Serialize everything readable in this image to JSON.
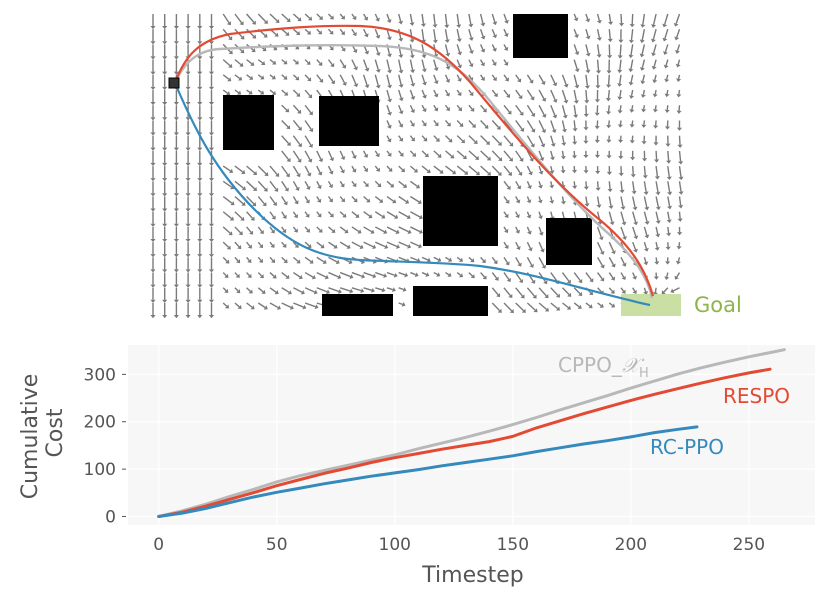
{
  "colors": {
    "respo": "#e24a33",
    "rc_ppo": "#348abd",
    "cppo": "#b8b8b8",
    "goal_fill": "#c9dfa3",
    "goal_text": "#8cb54a",
    "arrow": "#7a7a7a",
    "obstacle": "#000000",
    "plot_bg": "#f7f7f7",
    "grid": "#ffffff",
    "tick_text": "#555555"
  },
  "trajectory_panel": {
    "goal_label": "Goal",
    "icons": [
      "start-marker-icon",
      "vector-field-arrow-icon"
    ],
    "paths": [
      {
        "name": "RESPO",
        "color_key": "respo"
      },
      {
        "name": "CPPO_X_H",
        "color_key": "cppo"
      },
      {
        "name": "RC-PPO",
        "color_key": "rc_ppo"
      }
    ]
  },
  "chart_data": {
    "type": "line",
    "xlabel": "Timestep",
    "ylabel": "Cumulative\nCost",
    "ylabel_lines": [
      "Cumulative",
      "Cost"
    ],
    "xlim": [
      -13,
      278
    ],
    "ylim": [
      -18,
      362
    ],
    "xticks": [
      0,
      50,
      100,
      150,
      200,
      250
    ],
    "yticks": [
      0,
      100,
      200,
      300
    ],
    "xtick_labels": [
      "0",
      "50",
      "100",
      "150",
      "200",
      "250"
    ],
    "ytick_labels": [
      "0",
      "100",
      "200",
      "300"
    ],
    "grid": true,
    "series": [
      {
        "name": "CPPO_X_H",
        "label_main": "CPPO_",
        "label_math": "𝒳",
        "label_sub": "H",
        "color_key": "cppo",
        "x": [
          0,
          10,
          20,
          30,
          40,
          50,
          60,
          70,
          80,
          90,
          100,
          110,
          120,
          130,
          140,
          150,
          160,
          170,
          180,
          190,
          200,
          210,
          220,
          230,
          240,
          250,
          260,
          265
        ],
        "y": [
          0,
          12,
          26,
          42,
          57,
          73,
          86,
          97,
          108,
          119,
          130,
          143,
          155,
          167,
          180,
          194,
          209,
          225,
          240,
          255,
          271,
          286,
          301,
          314,
          326,
          337,
          347,
          352
        ]
      },
      {
        "name": "RESPO",
        "color_key": "respo",
        "x": [
          0,
          10,
          20,
          30,
          40,
          50,
          60,
          70,
          80,
          90,
          100,
          110,
          120,
          130,
          140,
          150,
          160,
          170,
          180,
          190,
          200,
          210,
          220,
          230,
          240,
          250,
          259
        ],
        "y": [
          0,
          9,
          22,
          36,
          50,
          65,
          78,
          91,
          102,
          114,
          124,
          133,
          142,
          150,
          158,
          169,
          187,
          202,
          217,
          231,
          245,
          258,
          270,
          282,
          293,
          303,
          311
        ]
      },
      {
        "name": "RC-PPO",
        "color_key": "rc_ppo",
        "x": [
          0,
          10,
          20,
          30,
          40,
          50,
          60,
          70,
          80,
          90,
          100,
          110,
          120,
          130,
          140,
          150,
          160,
          170,
          180,
          190,
          200,
          210,
          220,
          228
        ],
        "y": [
          0,
          7,
          17,
          29,
          41,
          51,
          60,
          69,
          77,
          85,
          92,
          99,
          107,
          114,
          121,
          128,
          137,
          145,
          153,
          160,
          168,
          177,
          184,
          189
        ]
      }
    ]
  }
}
